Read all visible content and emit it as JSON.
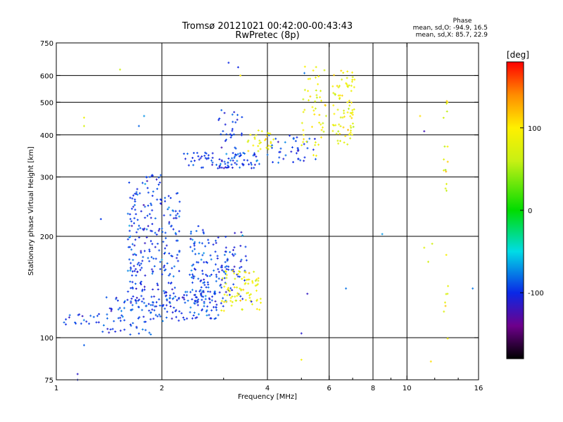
{
  "chart_data": {
    "type": "scatter",
    "title": "Tromsø 20121021 00:42:00-00:43:43",
    "subtitle": "RwPretec (8p)",
    "xlabel": "Frequency [MHz]",
    "ylabel": "Stationary phase Virtual Height [km]",
    "x_scale": "log",
    "y_scale": "log",
    "xlim": [
      1,
      16
    ],
    "ylim": [
      75,
      750
    ],
    "x_ticks": [
      "1",
      "2",
      "4",
      "6",
      "8",
      "10",
      "16"
    ],
    "y_ticks": [
      "75",
      "100",
      "200",
      "300",
      "400",
      "500",
      "600",
      "750"
    ],
    "grid": true,
    "phase_box": {
      "title": "Phase",
      "line1": "mean, sd,O: -94.9, 16.5",
      "line2": "mean, sd,X: 85.7, 22.9"
    },
    "colorbar": {
      "label": "[deg]",
      "ticks": [
        "100",
        "0",
        "-100"
      ],
      "tick_values": [
        100,
        0,
        -100
      ],
      "range": [
        -180,
        180
      ],
      "colormap": "rainbow (black-violet-blue-cyan-green-yellow-red)"
    },
    "series": [
      {
        "mode": "O",
        "phase_mean": -94.9,
        "phase_sd": 16.5,
        "color": "#0a2ee0",
        "clusters": [
          {
            "x_range": [
              1.05,
              1.35
            ],
            "y_range": [
              108,
              118
            ],
            "count": 20
          },
          {
            "x_range": [
              1.35,
              1.95
            ],
            "y_range": [
              102,
              132
            ],
            "count": 70
          },
          {
            "x_range": [
              1.95,
              2.9
            ],
            "y_range": [
              112,
              138
            ],
            "count": 90
          },
          {
            "x_range": [
              1.6,
              1.8
            ],
            "y_range": [
              120,
              290
            ],
            "count": 110
          },
          {
            "x_range": [
              1.8,
              2.05
            ],
            "y_range": [
              118,
              305
            ],
            "count": 90
          },
          {
            "x_range": [
              2.05,
              2.25
            ],
            "y_range": [
              125,
              270
            ],
            "count": 60
          },
          {
            "x_range": [
              2.4,
              2.7
            ],
            "y_range": [
              122,
              215
            ],
            "count": 70
          },
          {
            "x_range": [
              2.7,
              3.1
            ],
            "y_range": [
              122,
              200
            ],
            "count": 60
          },
          {
            "x_range": [
              3.0,
              3.5
            ],
            "y_range": [
              130,
              210
            ],
            "count": 40
          },
          {
            "x_range": [
              2.3,
              3.8
            ],
            "y_range": [
              318,
              355
            ],
            "count": 90
          },
          {
            "x_range": [
              2.9,
              3.4
            ],
            "y_range": [
              340,
              480
            ],
            "count": 30
          },
          {
            "x_range": [
              4.0,
              5.5
            ],
            "y_range": [
              330,
              400
            ],
            "count": 40
          }
        ]
      },
      {
        "mode": "X",
        "phase_mean": 85.7,
        "phase_sd": 22.9,
        "color": "#c8f020",
        "clusters": [
          {
            "x_range": [
              2.95,
              3.85
            ],
            "y_range": [
              120,
              158
            ],
            "count": 80
          },
          {
            "x_range": [
              3.5,
              4.2
            ],
            "y_range": [
              350,
              420
            ],
            "count": 30
          },
          {
            "x_range": [
              5.0,
              5.9
            ],
            "y_range": [
              340,
              640
            ],
            "count": 50
          },
          {
            "x_range": [
              6.1,
              7.1
            ],
            "y_range": [
              370,
              620
            ],
            "count": 80
          },
          {
            "x_range": [
              12.7,
              13.1
            ],
            "y_range": [
              270,
              590
            ],
            "count": 15
          },
          {
            "x_range": [
              12.7,
              13.1
            ],
            "y_range": [
              95,
              190
            ],
            "count": 8
          }
        ]
      },
      {
        "mode": "sporadic",
        "points": [
          [
            1.52,
            625
          ],
          [
            1.2,
            450
          ],
          [
            1.2,
            425
          ],
          [
            1.72,
            425
          ],
          [
            1.78,
            455
          ],
          [
            3.1,
            655
          ],
          [
            3.3,
            635
          ],
          [
            3.35,
            600
          ],
          [
            1.34,
            225
          ],
          [
            1.2,
            95
          ],
          [
            1.15,
            78
          ],
          [
            1.15,
            75
          ],
          [
            5.0,
            103
          ],
          [
            5.0,
            86
          ],
          [
            5.3,
            520
          ],
          [
            5.1,
            610
          ],
          [
            8.5,
            203
          ],
          [
            11.2,
            185
          ],
          [
            11.5,
            168
          ],
          [
            10.9,
            455
          ],
          [
            11.2,
            410
          ],
          [
            15.4,
            140
          ],
          [
            6.7,
            140
          ],
          [
            5.2,
            135
          ],
          [
            3.6,
            128
          ],
          [
            11.7,
            85
          ],
          [
            11.8,
            190
          ]
        ]
      }
    ]
  }
}
